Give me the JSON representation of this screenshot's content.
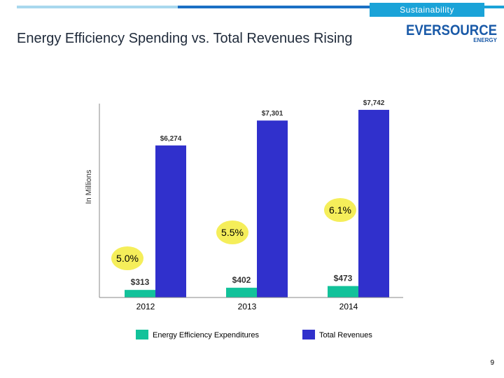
{
  "header": {
    "section_tag": "Sustainability",
    "title": "Energy Efficiency Spending vs. Total Revenues Rising"
  },
  "logo": {
    "word": "EVERSOURCE",
    "sub": "ENERGY"
  },
  "colors": {
    "accent": "#1aa3d8",
    "bar_ee": "#12c29a",
    "bar_rev": "#3030cc",
    "bubble": "#f5ee5a"
  },
  "chart_data": {
    "type": "bar",
    "categories": [
      "2012",
      "2013",
      "2014"
    ],
    "series": [
      {
        "name": "Energy Efficiency Expenditures",
        "values": [
          313,
          402,
          473
        ],
        "labels": [
          "$313",
          "$402",
          "$473"
        ]
      },
      {
        "name": "Total Revenues",
        "values": [
          6274,
          7301,
          7742
        ],
        "labels": [
          "$6,274",
          "$7,301",
          "$7,742"
        ]
      }
    ],
    "ratios": [
      "5.0%",
      "5.5%",
      "6.1%"
    ],
    "ylabel": "In Millions",
    "ylim": [
      0,
      8000
    ],
    "legend": "bottom"
  },
  "footer": {
    "page_number": "9"
  }
}
